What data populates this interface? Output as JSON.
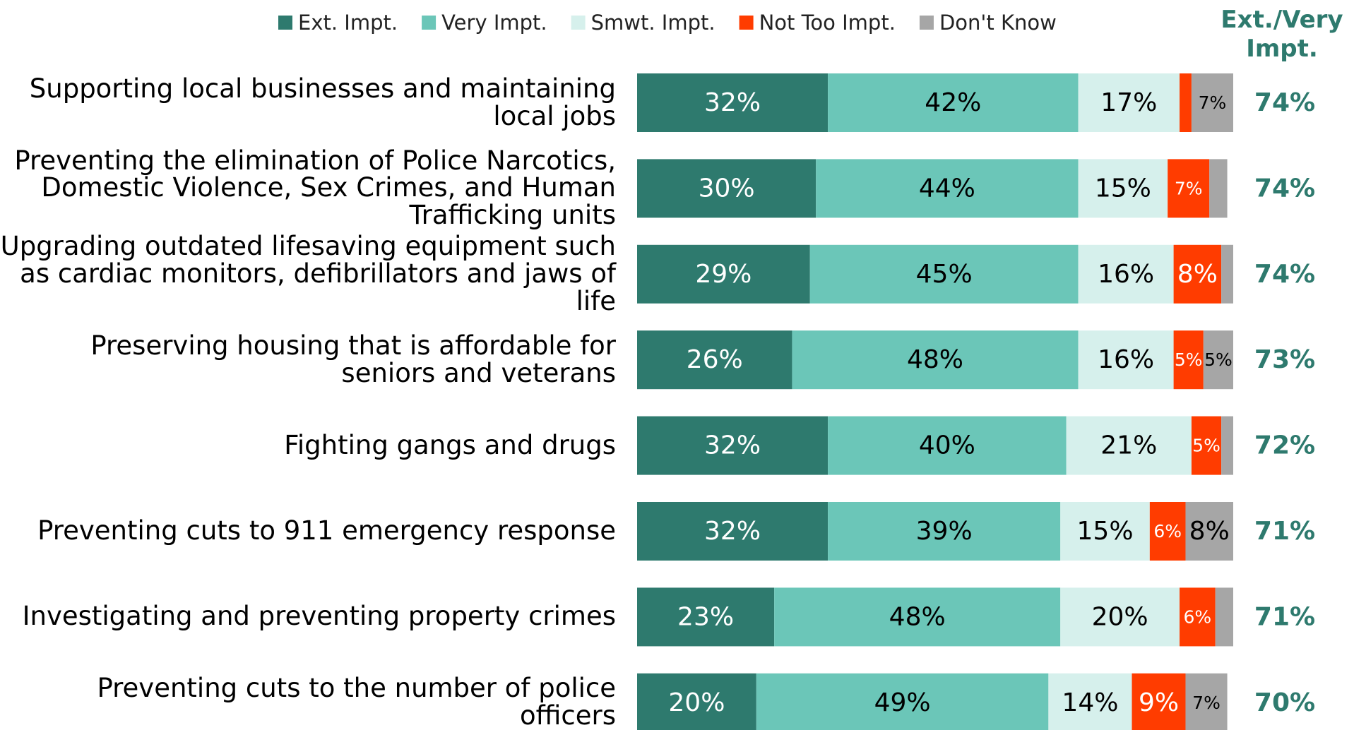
{
  "chart_data": {
    "type": "stacked-bar-horizontal",
    "categories": [
      "Supporting local businesses and maintaining local jobs",
      "Preventing the elimination of Police Narcotics, Domestic Violence, Sex Crimes, and Human Trafficking units",
      "Upgrading outdated lifesaving equipment such as cardiac monitors, defibrillators and jaws of life",
      "Preserving housing that is affordable for seniors and veterans",
      "Fighting gangs and drugs",
      "Preventing cuts to 911 emergency response",
      "Investigating and preventing property crimes",
      "Preventing cuts to the number of police officers"
    ],
    "series": [
      {
        "name": "Ext. Impt.",
        "color": "#2e7a6e",
        "values": [
          32,
          30,
          29,
          26,
          32,
          32,
          23,
          20
        ],
        "value_labels": [
          "32%",
          "30%",
          "29%",
          "26%",
          "32%",
          "32%",
          "23%",
          "20%"
        ]
      },
      {
        "name": "Very Impt.",
        "color": "#6bc6b8",
        "values": [
          42,
          44,
          45,
          48,
          40,
          39,
          48,
          49
        ],
        "value_labels": [
          "42%",
          "44%",
          "45%",
          "48%",
          "40%",
          "39%",
          "48%",
          "49%"
        ]
      },
      {
        "name": "Smwt. Impt.",
        "color": "#d6f0ec",
        "values": [
          17,
          15,
          16,
          16,
          21,
          15,
          20,
          14
        ],
        "value_labels": [
          "17%",
          "15%",
          "16%",
          "16%",
          "21%",
          "15%",
          "20%",
          "14%"
        ]
      },
      {
        "name": "Not Too Impt.",
        "color": "#ff3c00",
        "values": [
          2,
          7,
          8,
          5,
          5,
          6,
          6,
          9
        ],
        "value_labels": [
          null,
          "7%",
          "8%",
          "5%",
          "5%",
          "6%",
          "6%",
          "9%"
        ]
      },
      {
        "name": "Don't Know",
        "color": "#a6a6a6",
        "values": [
          7,
          3,
          2,
          5,
          2,
          8,
          3,
          7
        ],
        "value_labels": [
          "7%",
          null,
          null,
          "5%",
          null,
          "8%",
          null,
          "7%"
        ]
      }
    ],
    "totals": {
      "name": "Ext./Very Impt.",
      "color": "#2e7a6e",
      "values": [
        74,
        74,
        74,
        73,
        72,
        71,
        71,
        70
      ],
      "value_labels": [
        "74%",
        "74%",
        "74%",
        "73%",
        "72%",
        "71%",
        "71%",
        "70%"
      ]
    }
  }
}
